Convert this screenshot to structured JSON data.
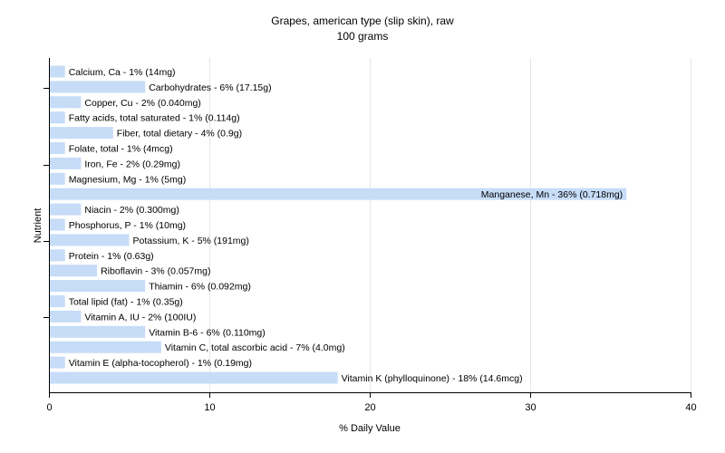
{
  "chart_data": {
    "type": "bar",
    "orientation": "horizontal",
    "title": "Grapes, american type (slip skin), raw",
    "subtitle": "100 grams",
    "xlabel": "% Daily Value",
    "ylabel": "Nutrient",
    "xlim": [
      0,
      40
    ],
    "xticks": [
      0,
      10,
      20,
      30,
      40
    ],
    "grid": true,
    "bar_color": "#c6dcf7",
    "grid_color": "#e6e6e6",
    "bars": [
      {
        "category": "Calcium, Ca",
        "value": 1,
        "label": "Calcium, Ca - 1% (14mg)"
      },
      {
        "category": "Carbohydrates",
        "value": 6,
        "label": "Carbohydrates - 6% (17.15g)"
      },
      {
        "category": "Copper, Cu",
        "value": 2,
        "label": "Copper, Cu - 2% (0.040mg)"
      },
      {
        "category": "Fatty acids, total saturated",
        "value": 1,
        "label": "Fatty acids, total saturated - 1% (0.114g)"
      },
      {
        "category": "Fiber, total dietary",
        "value": 4,
        "label": "Fiber, total dietary - 4% (0.9g)"
      },
      {
        "category": "Folate, total",
        "value": 1,
        "label": "Folate, total - 1% (4mcg)"
      },
      {
        "category": "Iron, Fe",
        "value": 2,
        "label": "Iron, Fe - 2% (0.29mg)"
      },
      {
        "category": "Magnesium, Mg",
        "value": 1,
        "label": "Magnesium, Mg - 1% (5mg)"
      },
      {
        "category": "Manganese, Mn",
        "value": 36,
        "label": "Manganese, Mn - 36% (0.718mg)"
      },
      {
        "category": "Niacin",
        "value": 2,
        "label": "Niacin - 2% (0.300mg)"
      },
      {
        "category": "Phosphorus, P",
        "value": 1,
        "label": "Phosphorus, P - 1% (10mg)"
      },
      {
        "category": "Potassium, K",
        "value": 5,
        "label": "Potassium, K - 5% (191mg)"
      },
      {
        "category": "Protein",
        "value": 1,
        "label": "Protein - 1% (0.63g)"
      },
      {
        "category": "Riboflavin",
        "value": 3,
        "label": "Riboflavin - 3% (0.057mg)"
      },
      {
        "category": "Thiamin",
        "value": 6,
        "label": "Thiamin - 6% (0.092mg)"
      },
      {
        "category": "Total lipid (fat)",
        "value": 1,
        "label": "Total lipid (fat) - 1% (0.35g)"
      },
      {
        "category": "Vitamin A, IU",
        "value": 2,
        "label": "Vitamin A, IU - 2% (100IU)"
      },
      {
        "category": "Vitamin B-6",
        "value": 6,
        "label": "Vitamin B-6 - 6% (0.110mg)"
      },
      {
        "category": "Vitamin C, total ascorbic acid",
        "value": 7,
        "label": "Vitamin C, total ascorbic acid - 7% (4.0mg)"
      },
      {
        "category": "Vitamin E (alpha-tocopherol)",
        "value": 1,
        "label": "Vitamin E (alpha-tocopherol) - 1% (0.19mg)"
      },
      {
        "category": "Vitamin K (phylloquinone)",
        "value": 18,
        "label": "Vitamin K (phylloquinone) - 18% (14.6mcg)"
      }
    ]
  }
}
